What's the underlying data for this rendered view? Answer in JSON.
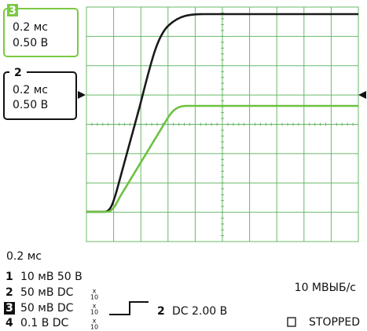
{
  "channel_boxes": [
    {
      "channel": "3",
      "time": "0.2 мс",
      "volts": "0.50 В"
    },
    {
      "channel": "2",
      "time": "0.2 мс",
      "volts": "0.50 В"
    }
  ],
  "status": {
    "timebase": "0.2 мс",
    "channels": [
      {
        "channel": "1",
        "setting": "10 мВ 50 В"
      },
      {
        "channel": "2",
        "setting": "50 мВ DC",
        "probe_x": "x",
        "probe": "10"
      },
      {
        "channel": "3",
        "setting": "50 мВ DC",
        "probe_x": "x",
        "probe": "10"
      },
      {
        "channel": "4",
        "setting": "0.1 В DC",
        "probe_x": "x",
        "probe": "10"
      }
    ],
    "trigger": {
      "channel": "2",
      "setting": "DC 2.00 В"
    },
    "sample_rate": "10 МВЫБ/с",
    "state": "STOPPED"
  }
}
